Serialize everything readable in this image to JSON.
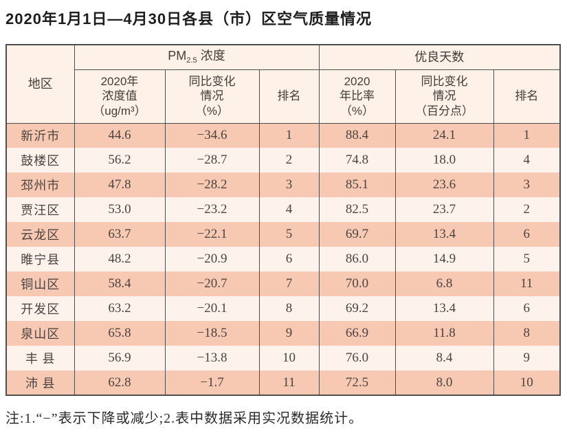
{
  "page": {
    "title": "2020年1月1日—4月30日各县（市）区空气质量情况",
    "note": "注:1.“−”表示下降或减少;2.表中数据采用实况数据统计。"
  },
  "colors": {
    "row_stripe_dark": "#f7c9b2",
    "row_stripe_light": "#fdf2ec",
    "header_bg": "#fdf1e8",
    "border": "#4d4d4d"
  },
  "chart_data": {
    "type": "table",
    "title": "2020年1月1日—4月30日各县（市）区空气质量情况",
    "column_groups": [
      "PM2.5浓度",
      "优良天数"
    ],
    "columns": [
      "地区",
      "2020年浓度值（ug/m³）",
      "同比变化情况（%）",
      "排名",
      "2020年比率（%）",
      "同比变化情况（百分点）",
      "排名"
    ],
    "rows": [
      [
        "新沂市",
        44.6,
        -34.6,
        1,
        88.4,
        24.1,
        1
      ],
      [
        "鼓楼区",
        56.2,
        -28.7,
        2,
        74.8,
        18.0,
        4
      ],
      [
        "邳州市",
        47.8,
        -28.2,
        3,
        85.1,
        23.6,
        3
      ],
      [
        "贾汪区",
        53.0,
        -23.2,
        4,
        82.5,
        23.7,
        2
      ],
      [
        "云龙区",
        63.7,
        -22.1,
        5,
        69.7,
        13.4,
        6
      ],
      [
        "睢宁县",
        48.2,
        -20.9,
        6,
        86.0,
        14.9,
        5
      ],
      [
        "铜山区",
        58.4,
        -20.7,
        7,
        70.0,
        6.8,
        11
      ],
      [
        "开发区",
        63.2,
        -20.1,
        8,
        69.2,
        13.4,
        6
      ],
      [
        "泉山区",
        65.8,
        -18.5,
        9,
        66.9,
        11.8,
        8
      ],
      [
        "丰 县",
        56.9,
        -13.8,
        10,
        76.0,
        8.4,
        9
      ],
      [
        "沛 县",
        62.8,
        -1.7,
        11,
        72.5,
        8.0,
        10
      ]
    ]
  },
  "table": {
    "header": {
      "region_label": "地区",
      "pm_group": {
        "prefix": "PM",
        "subscript": "2.5",
        "suffix": " 浓度"
      },
      "good_days_label": "优良天数",
      "sub_headers": {
        "pm_value": "2020年\n浓度值\n（ug/m³）",
        "pm_change": "同比变化\n情况\n（%）",
        "pm_rank": "排名",
        "good_ratio": "2020\n年比率\n（%）",
        "good_change": "同比变化\n情况\n（百分点）",
        "good_rank": "排名"
      }
    },
    "rows": [
      {
        "region": "新沂市",
        "pm_value": "44.6",
        "pm_change": "−34.6",
        "pm_rank": "1",
        "good_ratio": "88.4",
        "good_change": "24.1",
        "good_rank": "1"
      },
      {
        "region": "鼓楼区",
        "pm_value": "56.2",
        "pm_change": "−28.7",
        "pm_rank": "2",
        "good_ratio": "74.8",
        "good_change": "18.0",
        "good_rank": "4"
      },
      {
        "region": "邳州市",
        "pm_value": "47.8",
        "pm_change": "−28.2",
        "pm_rank": "3",
        "good_ratio": "85.1",
        "good_change": "23.6",
        "good_rank": "3"
      },
      {
        "region": "贾汪区",
        "pm_value": "53.0",
        "pm_change": "−23.2",
        "pm_rank": "4",
        "good_ratio": "82.5",
        "good_change": "23.7",
        "good_rank": "2"
      },
      {
        "region": "云龙区",
        "pm_value": "63.7",
        "pm_change": "−22.1",
        "pm_rank": "5",
        "good_ratio": "69.7",
        "good_change": "13.4",
        "good_rank": "6"
      },
      {
        "region": "睢宁县",
        "pm_value": "48.2",
        "pm_change": "−20.9",
        "pm_rank": "6",
        "good_ratio": "86.0",
        "good_change": "14.9",
        "good_rank": "5"
      },
      {
        "region": "铜山区",
        "pm_value": "58.4",
        "pm_change": "−20.7",
        "pm_rank": "7",
        "good_ratio": "70.0",
        "good_change": "6.8",
        "good_rank": "11"
      },
      {
        "region": "开发区",
        "pm_value": "63.2",
        "pm_change": "−20.1",
        "pm_rank": "8",
        "good_ratio": "69.2",
        "good_change": "13.4",
        "good_rank": "6"
      },
      {
        "region": "泉山区",
        "pm_value": "65.8",
        "pm_change": "−18.5",
        "pm_rank": "9",
        "good_ratio": "66.9",
        "good_change": "11.8",
        "good_rank": "8"
      },
      {
        "region": "丰 县",
        "pm_value": "56.9",
        "pm_change": "−13.8",
        "pm_rank": "10",
        "good_ratio": "76.0",
        "good_change": "8.4",
        "good_rank": "9"
      },
      {
        "region": "沛 县",
        "pm_value": "62.8",
        "pm_change": "−1.7",
        "pm_rank": "11",
        "good_ratio": "72.5",
        "good_change": "8.0",
        "good_rank": "10"
      }
    ]
  }
}
